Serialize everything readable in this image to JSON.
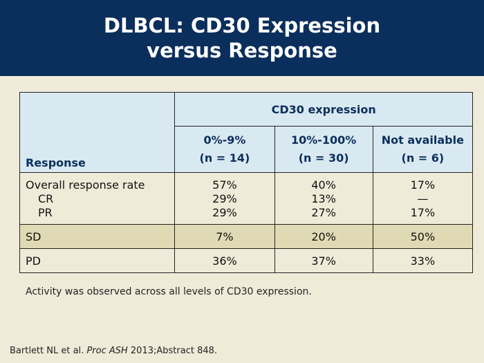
{
  "title": {
    "line1": "DLBCL: CD30 Expression",
    "line2": "versus Response"
  },
  "table": {
    "group_header": "CD30 expression",
    "response_header": "Response",
    "columns": [
      {
        "range": "0%-9%",
        "n": "(n = 14)"
      },
      {
        "range": "10%-100%",
        "n": "(n = 30)"
      },
      {
        "range": "Not available",
        "n": "(n = 6)"
      }
    ],
    "rows": {
      "orr": {
        "label": "Overall response rate",
        "values": [
          "57%",
          "40%",
          "17%"
        ]
      },
      "cr": {
        "label": "CR",
        "values": [
          "29%",
          "13%",
          "—"
        ]
      },
      "pr": {
        "label": "PR",
        "values": [
          "29%",
          "27%",
          "17%"
        ]
      },
      "sd": {
        "label": "SD",
        "values": [
          "7%",
          "20%",
          "50%"
        ]
      },
      "pd": {
        "label": "PD",
        "values": [
          "36%",
          "37%",
          "33%"
        ]
      }
    }
  },
  "note": "Activity was observed across all levels of CD30 expression.",
  "citation": {
    "authors": "Bartlett NL et al. ",
    "journal": "Proc ASH",
    "rest": " 2013;Abstract 848."
  },
  "colors": {
    "title_bar": "#0b2f5c",
    "background": "#f0ebd9",
    "header_fill": "#d9e9f2",
    "highlight_row": "#e0dab4"
  }
}
